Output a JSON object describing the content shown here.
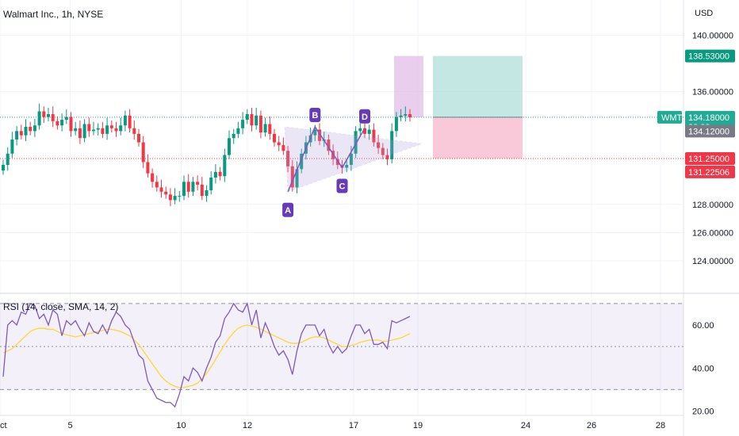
{
  "header": {
    "title": "Walmart Inc., 1h, NYSE"
  },
  "price_axis": {
    "currency": "USD"
  },
  "chart_data": [
    {
      "type": "candlestick",
      "title": "Walmart Inc., 1h, NYSE",
      "ylabel": "USD",
      "ylim": [
        121.8,
        142.5
      ],
      "yticks": [
        "124.00000",
        "126.00000",
        "128.00000",
        "136.00000",
        "140.00000"
      ],
      "xticks": [
        "ct",
        "5",
        "10",
        "12",
        "17",
        "19",
        "24",
        "26",
        "28"
      ],
      "xtick_positions": [
        0,
        88.5,
        228.5,
        312,
        446,
        527,
        663,
        746,
        833
      ],
      "price_tags": [
        {
          "label": "138.53000",
          "value": 138.53,
          "color": "#089981"
        },
        {
          "label": "134.18000",
          "sub": "33:38",
          "value": 134.18,
          "color": "#22ab94"
        },
        {
          "label": "134.12000",
          "value": 133.2,
          "color": "#787b86"
        },
        {
          "label": "131.25000",
          "value": 131.25,
          "color": "#f23645"
        },
        {
          "label": "131.22506",
          "value": 130.3,
          "color": "#f23645"
        }
      ],
      "symbol_badge": {
        "label": "WMT",
        "value": 134.18
      },
      "current_price": 134.18,
      "reference_line": 131.25,
      "series": [
        {
          "name": "WMT",
          "closes": [
            130.8,
            131.6,
            132.6,
            133.2,
            132.9,
            133.5,
            133.2,
            133.6,
            134.6,
            134.2,
            134.4,
            133.9,
            133.6,
            134.0,
            134.2,
            133.2,
            133.4,
            132.7,
            133.7,
            133.2,
            133.3,
            133.4,
            133.0,
            133.6,
            133.4,
            133.2,
            133.6,
            134.3,
            133.4,
            133.0,
            132.4,
            131.0,
            130.2,
            129.6,
            129.2,
            128.9,
            128.7,
            128.3,
            128.6,
            128.6,
            129.6,
            128.9,
            129.6,
            129.4,
            128.6,
            129.0,
            129.9,
            130.3,
            130.0,
            131.5,
            132.7,
            133.0,
            133.4,
            134.0,
            134.4,
            133.6,
            134.3,
            133.1,
            133.7,
            133.0,
            132.4,
            132.2,
            131.8,
            130.7,
            129.2,
            130.5,
            131.6,
            132.4,
            132.9,
            133.3,
            132.5,
            132.6,
            131.8,
            131.2,
            130.8,
            130.6,
            130.8,
            131.6,
            133.2,
            133.4,
            133.0,
            133.3,
            132.4,
            132.0,
            131.5,
            131.2,
            133.2,
            134.2,
            134.3,
            134.4,
            134.18
          ]
        }
      ],
      "pattern_points": [
        {
          "label": "A",
          "index": 63,
          "value": 128.9
        },
        {
          "label": "B",
          "index": 69,
          "value": 133.5
        },
        {
          "label": "C",
          "index": 75,
          "value": 130.6
        },
        {
          "label": "D",
          "index": 80,
          "value": 133.4
        }
      ],
      "position_box": {
        "entry": 134.18,
        "target": 138.53,
        "stop": 131.25
      },
      "range_box": {
        "low": 134.18,
        "high": 138.53
      }
    },
    {
      "type": "line",
      "title": "RSI (14, close, SMA, 14, 2)",
      "ylim": [
        18,
        74
      ],
      "yticks": [
        "20.00",
        "40.00",
        "60.00"
      ],
      "levels": [
        30,
        50,
        70
      ],
      "series": [
        {
          "name": "RSI",
          "values": [
            36,
            60,
            62,
            60,
            66,
            65,
            70,
            69,
            63,
            65,
            60,
            67,
            65,
            55,
            62,
            60,
            62,
            58,
            55,
            61,
            57,
            56,
            60,
            56,
            62,
            66,
            64,
            60,
            58,
            52,
            46,
            44,
            34,
            30,
            26,
            25,
            24,
            24,
            22,
            28,
            36,
            34,
            40,
            38,
            34,
            40,
            45,
            52,
            55,
            63,
            66,
            70,
            67,
            66,
            70,
            60,
            67,
            54,
            61,
            56,
            50,
            46,
            48,
            44,
            37,
            48,
            56,
            60,
            60,
            60,
            55,
            58,
            51,
            47,
            50,
            47,
            49,
            55,
            60,
            60,
            56,
            58,
            51,
            51,
            52,
            49,
            62,
            61,
            62,
            63,
            64
          ]
        },
        {
          "name": "RSI-based MA",
          "values": [
            47,
            48,
            49,
            51,
            53,
            55,
            57,
            58,
            58.5,
            58.5,
            58,
            58,
            57,
            56,
            55.5,
            55,
            54.5,
            55,
            55.5,
            56,
            56.5,
            57,
            57.5,
            58,
            58,
            57.5,
            57,
            56,
            55,
            53,
            51,
            48,
            45,
            42,
            39,
            36,
            34,
            32.5,
            31.5,
            31,
            31,
            31.5,
            32,
            33,
            35,
            37.5,
            40.5,
            44,
            47.5,
            51,
            54,
            56.5,
            58.5,
            59.5,
            60,
            59.5,
            59,
            58,
            57,
            56,
            55,
            54,
            53,
            52,
            51.5,
            51.5,
            52,
            53,
            54,
            54.5,
            54.5,
            54,
            53,
            52,
            51,
            50,
            50,
            50.5,
            51,
            52,
            52.5,
            53,
            53,
            53,
            52.5,
            52.5,
            53,
            53.5,
            54,
            55,
            56
          ]
        }
      ]
    }
  ]
}
